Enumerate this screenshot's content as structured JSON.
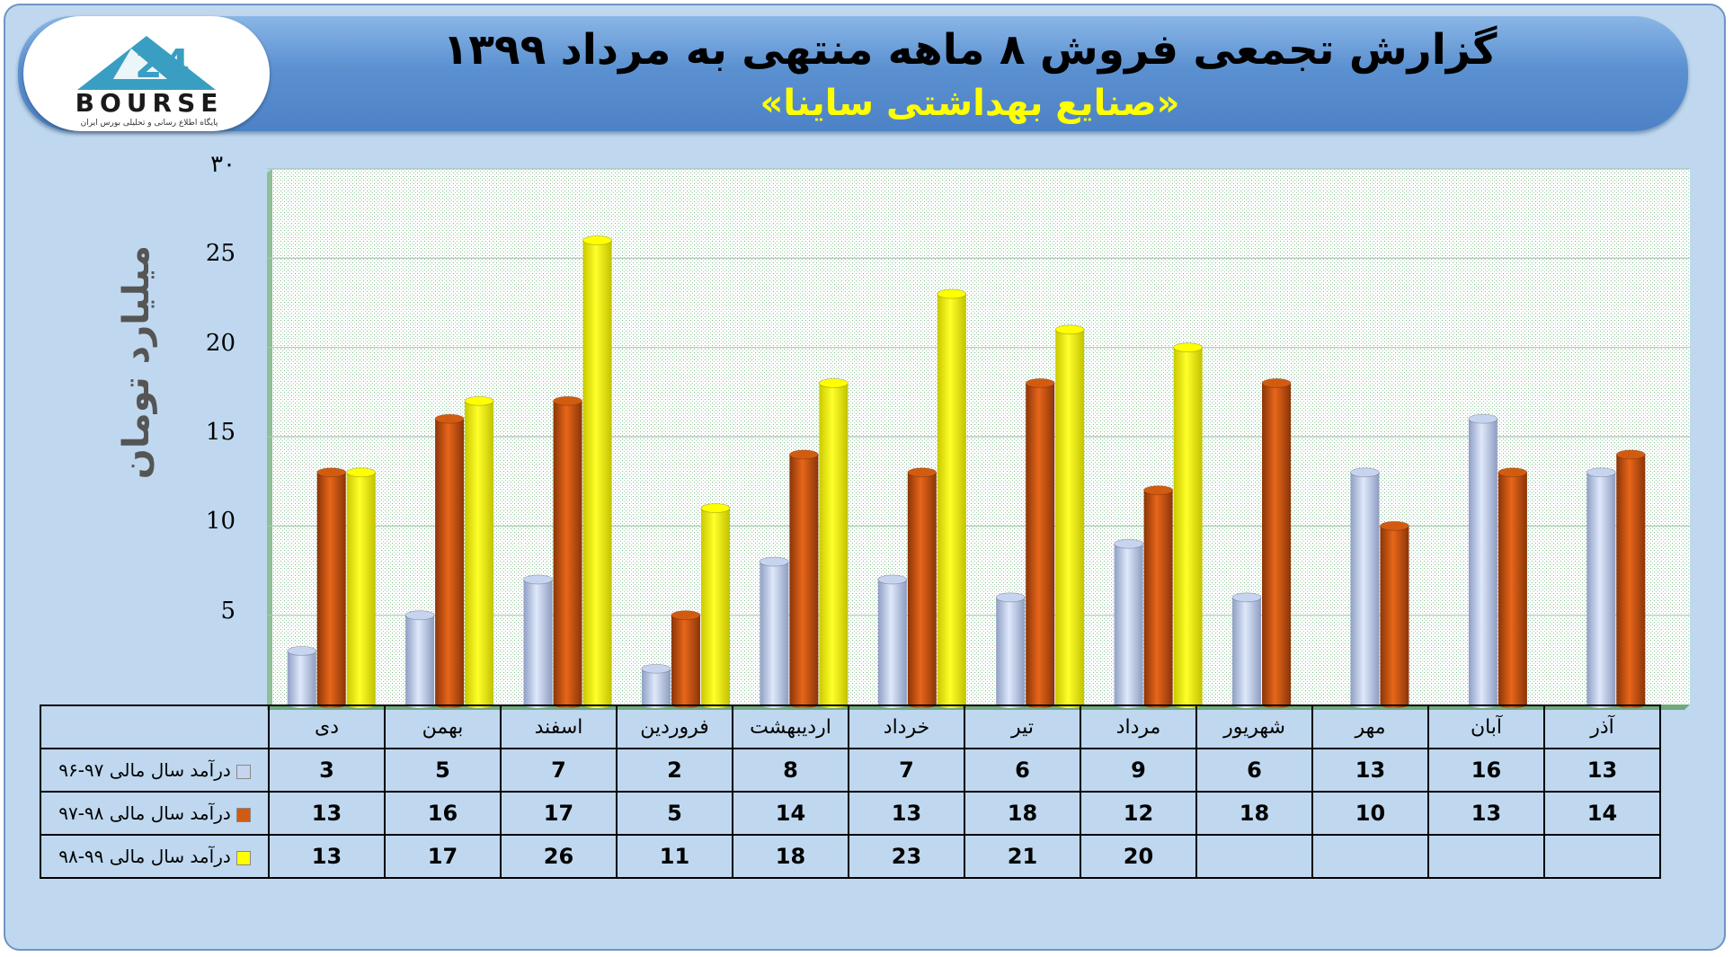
{
  "header": {
    "title": "گزارش تجمعی فروش ۸ ماهه منتهی به مرداد ۱۳۹۹",
    "subtitle": "«صنایع بهداشتی ساینا»",
    "logo_text": "BOURSE",
    "logo_sub": "پایگاه اطلاع رسانی و تحلیلی بورس ایران"
  },
  "chart_data": {
    "type": "bar",
    "ylabel": "میلیارد تومان",
    "ylim": [
      0,
      30
    ],
    "yticks": [
      "۳۰",
      "25",
      "20",
      "15",
      "10",
      "5"
    ],
    "ytick_values": [
      30,
      25,
      20,
      15,
      10,
      5
    ],
    "categories": [
      "دی",
      "بهمن",
      "اسفند",
      "فروردین",
      "اردیبهشت",
      "خرداد",
      "تیر",
      "مرداد",
      "شهریور",
      "مهر",
      "آبان",
      "آذر"
    ],
    "series": [
      {
        "name": "درآمد سال مالی ۹۷-۹۶",
        "color": "#c6d4f0",
        "values": [
          3,
          5,
          7,
          2,
          8,
          7,
          6,
          9,
          6,
          13,
          16,
          13
        ]
      },
      {
        "name": "درآمد سال مالی ۹۸-۹۷",
        "color": "#d35b0f",
        "values": [
          13,
          16,
          17,
          5,
          14,
          13,
          18,
          12,
          18,
          10,
          13,
          14
        ]
      },
      {
        "name": "درآمد سال مالی ۹۹-۹۸",
        "color": "#ffff00",
        "values": [
          13,
          17,
          26,
          11,
          18,
          23,
          21,
          20,
          null,
          null,
          null,
          null
        ]
      }
    ],
    "grid": true,
    "legend": "data table"
  }
}
